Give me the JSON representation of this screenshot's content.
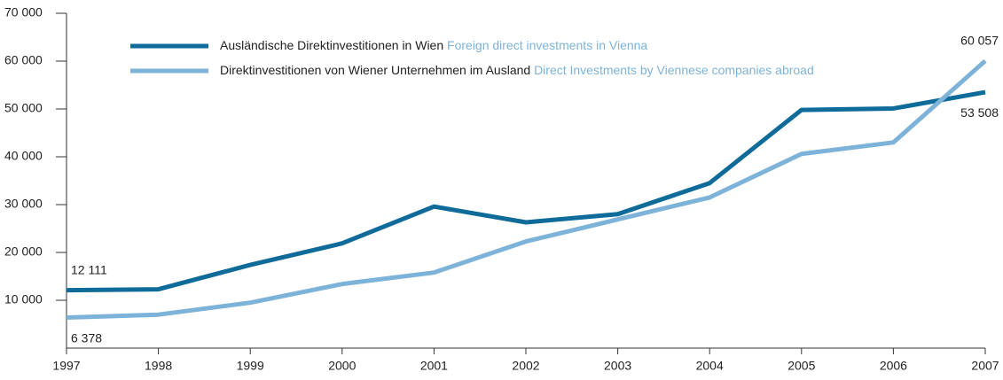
{
  "chart_data": {
    "type": "line",
    "x": [
      1997,
      1998,
      1999,
      2000,
      2001,
      2002,
      2003,
      2004,
      2005,
      2006,
      2007
    ],
    "xlim": [
      1997,
      2007
    ],
    "xticks": [
      1997,
      1998,
      1999,
      2000,
      2001,
      2002,
      2003,
      2004,
      2005,
      2006,
      2007
    ],
    "ylim": [
      0,
      70000
    ],
    "yticks": [
      {
        "value": 10000,
        "label": "10 000"
      },
      {
        "value": 20000,
        "label": "20 000"
      },
      {
        "value": 30000,
        "label": "30 000"
      },
      {
        "value": 40000,
        "label": "40 000"
      },
      {
        "value": 50000,
        "label": "50 000"
      },
      {
        "value": 60000,
        "label": "60 000"
      },
      {
        "value": 70000,
        "label": "70 000"
      }
    ],
    "grid": false,
    "legend": "top-left",
    "series": [
      {
        "name": "Ausländische Direktinvestitionen in Wien",
        "name_en": "Foreign direct investments in Vienna",
        "color": "#0f6b99",
        "values": [
          12111,
          12300,
          17400,
          21900,
          29600,
          26300,
          28000,
          34500,
          49800,
          50100,
          53508
        ],
        "value_labels": [
          "12 111",
          null,
          null,
          null,
          null,
          null,
          null,
          null,
          null,
          null,
          "53 508"
        ]
      },
      {
        "name": "Direktinvestitionen von Wiener Unternehmen im Ausland",
        "name_en": "Direct Investments by Viennese companies abroad",
        "color": "#7eb3d9",
        "values": [
          6378,
          7000,
          9500,
          13400,
          15800,
          22300,
          26900,
          31500,
          40600,
          43000,
          60057
        ],
        "value_labels": [
          "6 378",
          null,
          null,
          null,
          null,
          null,
          null,
          null,
          null,
          null,
          "60 057"
        ]
      }
    ]
  }
}
